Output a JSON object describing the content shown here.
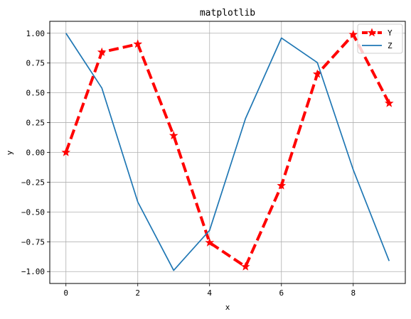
{
  "chart_data": {
    "type": "line",
    "title": "matplotlib",
    "xlabel": "x",
    "ylabel": "y",
    "xlim": [
      -0.45,
      9.45
    ],
    "ylim": [
      -1.1,
      1.1
    ],
    "xticks": [
      0,
      2,
      4,
      6,
      8
    ],
    "yticks": [
      1.0,
      0.75,
      0.5,
      0.25,
      0.0,
      -0.25,
      -0.5,
      -0.75,
      -1.0
    ],
    "ytick_labels": [
      "1.00",
      "0.75",
      "0.50",
      "0.25",
      "0.00",
      "−0.25",
      "−0.50",
      "−0.75",
      "−1.00"
    ],
    "grid": true,
    "legend_position": "top-right",
    "series": [
      {
        "name": "Y",
        "color": "#ff0000",
        "style": "dashed",
        "marker": "star",
        "x": [
          0,
          1,
          2,
          3,
          4,
          5,
          6,
          7,
          8,
          9
        ],
        "y": [
          0.0,
          0.841,
          0.909,
          0.141,
          -0.757,
          -0.959,
          -0.279,
          0.657,
          0.989,
          0.412
        ]
      },
      {
        "name": "Z",
        "color": "#1f77b4",
        "style": "solid",
        "marker": "none",
        "x": [
          0,
          1,
          2,
          3,
          4,
          5,
          6,
          7,
          8,
          9
        ],
        "y": [
          1.0,
          0.54,
          -0.416,
          -0.99,
          -0.654,
          0.284,
          0.96,
          0.754,
          -0.146,
          -0.911
        ]
      }
    ]
  }
}
